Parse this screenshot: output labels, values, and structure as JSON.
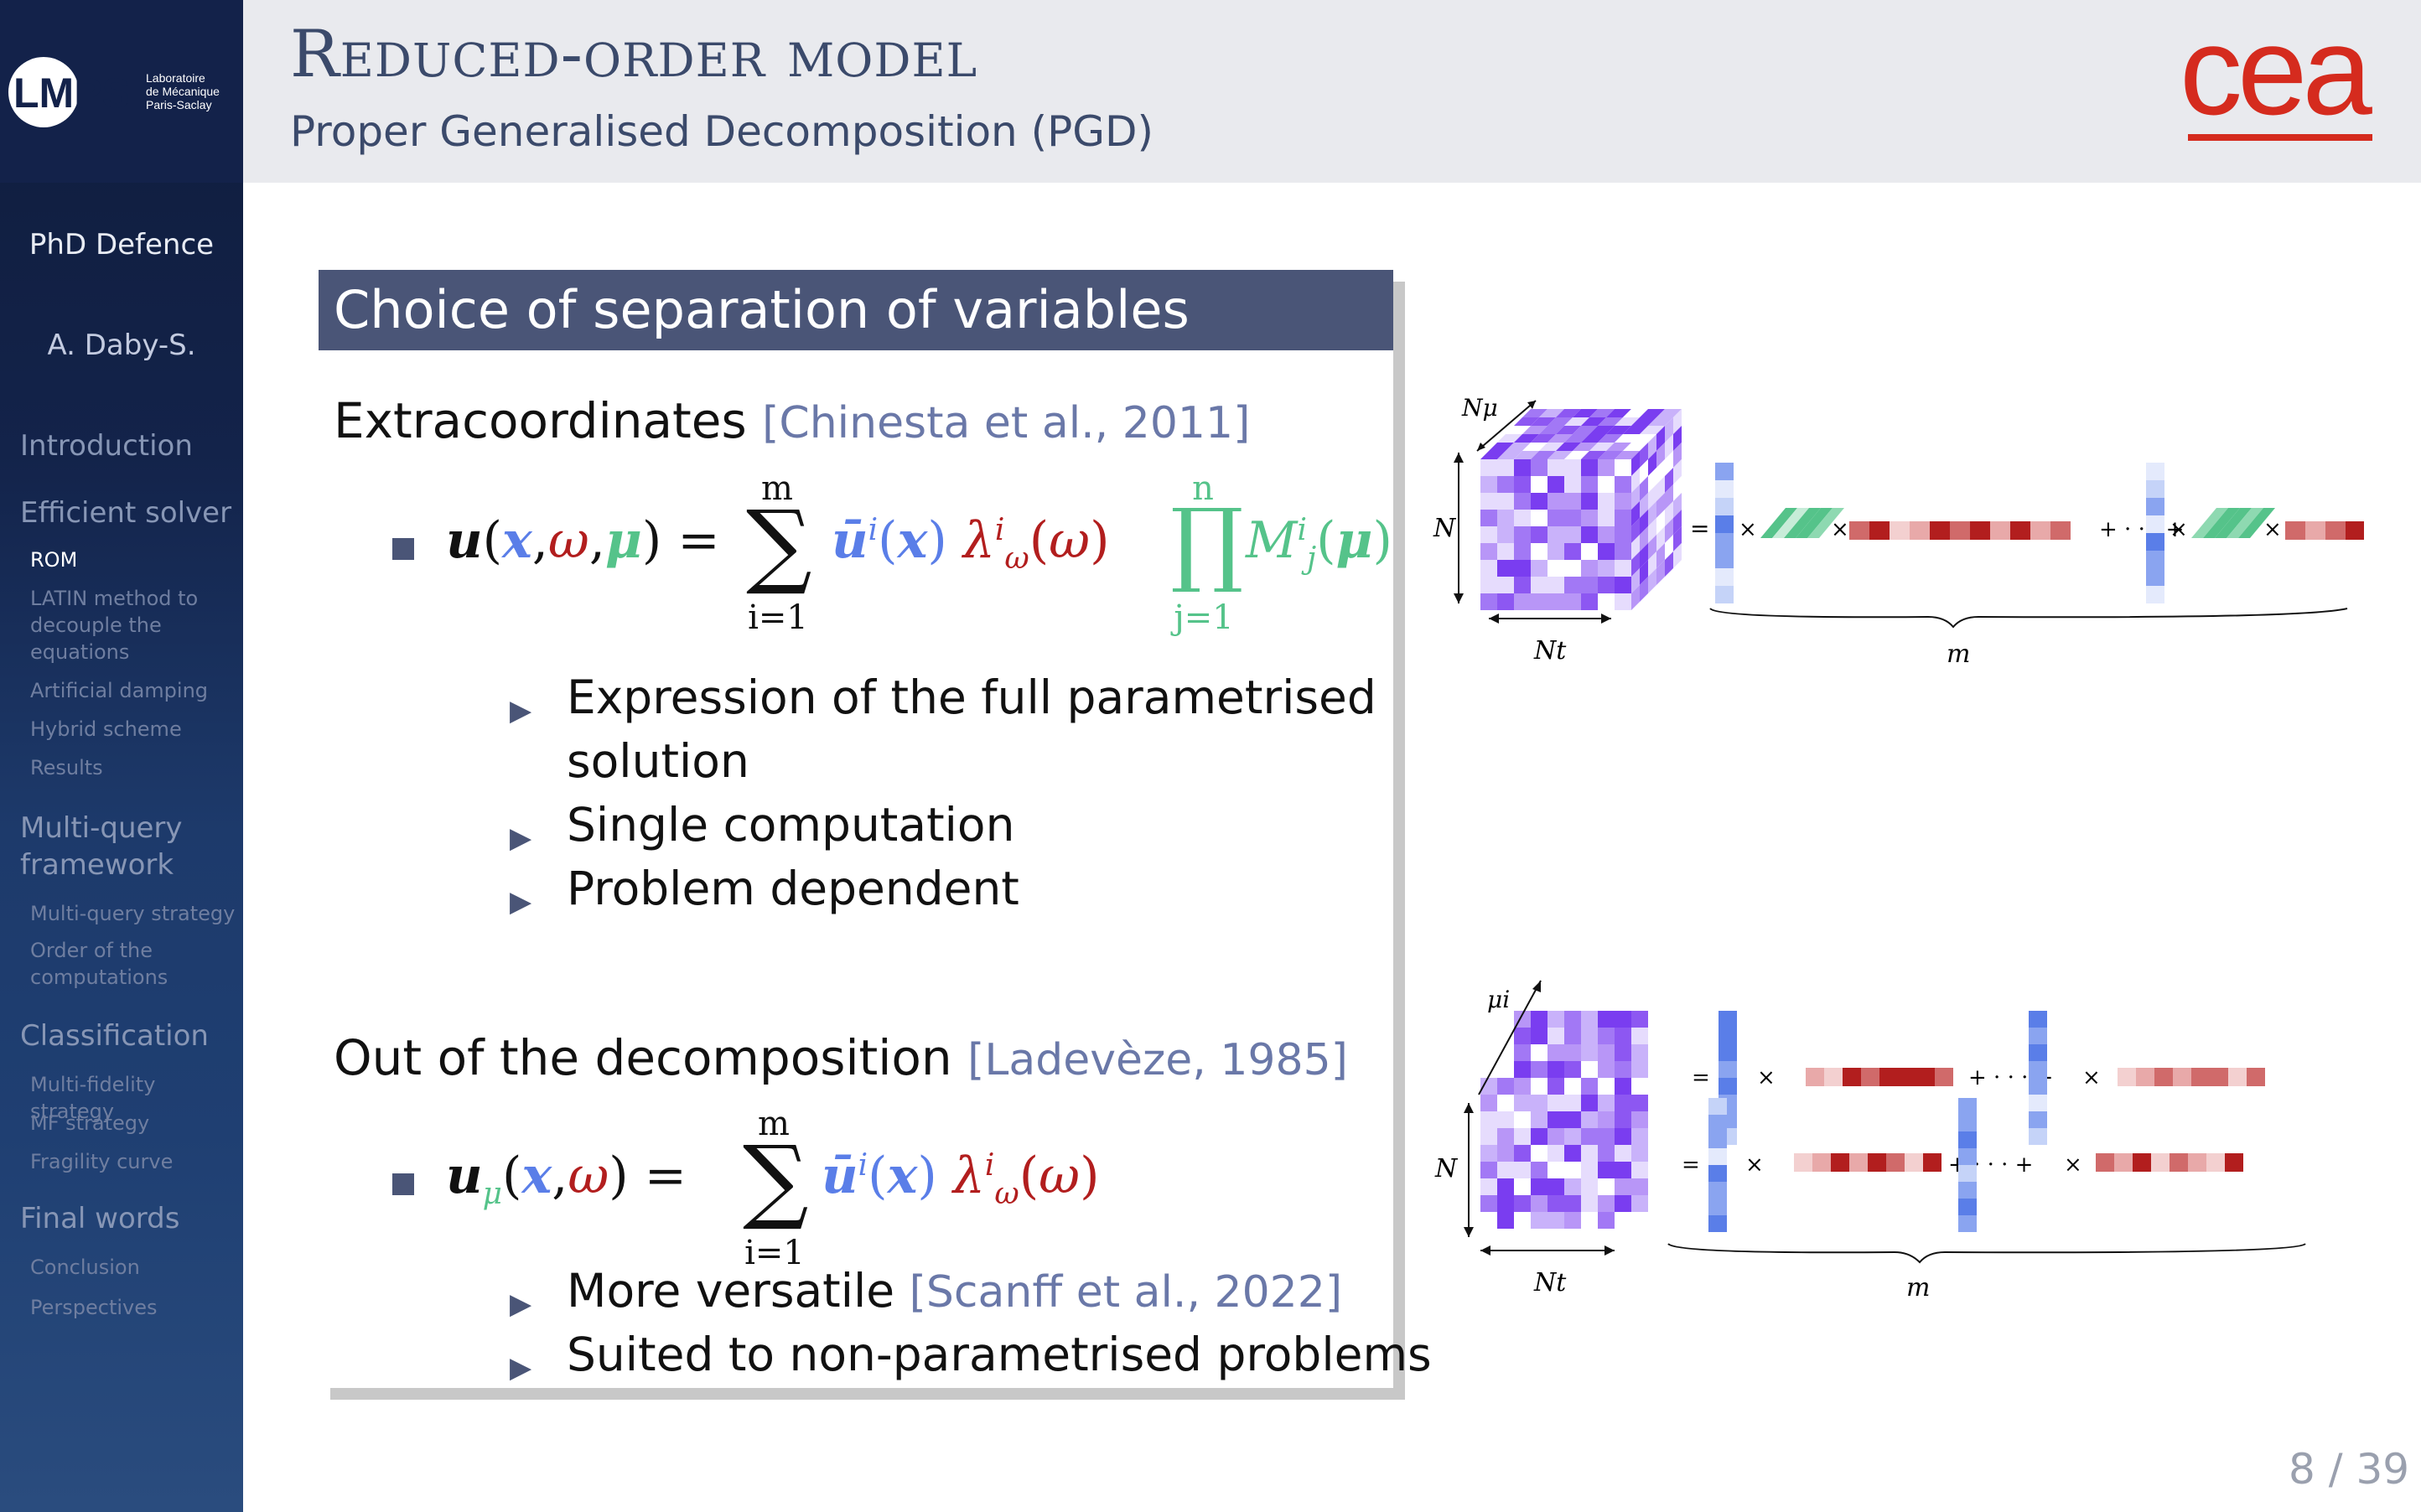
{
  "sidebar": {
    "logo_text": "LMPS",
    "logo_lab": [
      "Laboratoire",
      "de Mécanique",
      "Paris-Saclay"
    ],
    "thesis_title": "PhD Defence",
    "author": "A. Daby-S.",
    "sections": [
      {
        "label": "Introduction",
        "subs": []
      },
      {
        "label": "Efficient solver",
        "subs": [
          "ROM",
          "LATIN method to decouple the equations",
          "Artificial damping",
          "Hybrid scheme",
          "Results"
        ]
      },
      {
        "label": "Multi-query framework",
        "subs": [
          "Multi-query strategy",
          "Order of the computations"
        ]
      },
      {
        "label": "Classification",
        "subs": [
          "Multi-fidelity strategy",
          "MF strategy",
          "Fragility curve"
        ]
      },
      {
        "label": "Final words",
        "subs": [
          "Conclusion",
          "Perspectives"
        ]
      }
    ],
    "active_sub": "ROM"
  },
  "header": {
    "title": "Reduced-order model",
    "subtitle": "Proper Generalised Decomposition (PGD)",
    "logo": "cea"
  },
  "block": {
    "title": "Choice of separation of variables",
    "section1": {
      "heading": "Extracoordinates",
      "citation": "[Chinesta et al., 2011]",
      "bullets": [
        "Expression of the full parametrised",
        "solution",
        "Single computation",
        "Problem dependent"
      ]
    },
    "section2": {
      "heading": "Out of the decomposition",
      "citation": "[Ladevèze, 1985]",
      "bullet1_text": "More versatile",
      "bullet1_cite": "[Scanff et al., 2022]",
      "bullet2": "Suited to non-parametrised problems"
    }
  },
  "equations": {
    "eq1": {
      "lhs": "u(x, ω, μ) =",
      "sum_top": "m",
      "sum_bot": "i=1",
      "term_u": "ū^i(x)",
      "term_l": "λ^i_ω(ω)",
      "prod_top": "n",
      "prod_bot": "j=1",
      "term_m": "M^i_j(μ)"
    },
    "eq2": {
      "lhs": "u_μ(x, ω) =",
      "sum_top": "m",
      "sum_bot": "i=1",
      "term_u": "ū^i(x)",
      "term_l": "λ^i_ω(ω)"
    }
  },
  "figure_labels": {
    "fig1": {
      "n_mu": "Nμ",
      "n": "N",
      "n_t": "Nt",
      "m": "m"
    },
    "fig2": {
      "mu_i": "μi",
      "n": "N",
      "n_t": "Nt",
      "m": "m"
    }
  },
  "page_number": "8 / 39",
  "colors": {
    "blue": "#5a7ee8",
    "red": "#b21e1e",
    "green": "#55c38a",
    "block_header": "#4a5577",
    "cea_red": "#d52b1e"
  }
}
